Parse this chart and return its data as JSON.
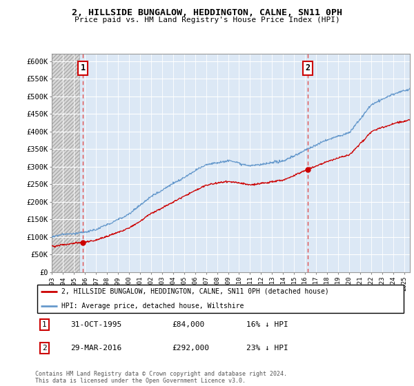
{
  "title": "2, HILLSIDE BUNGALOW, HEDDINGTON, CALNE, SN11 0PH",
  "subtitle": "Price paid vs. HM Land Registry's House Price Index (HPI)",
  "ylabel_ticks": [
    "£0",
    "£50K",
    "£100K",
    "£150K",
    "£200K",
    "£250K",
    "£300K",
    "£350K",
    "£400K",
    "£450K",
    "£500K",
    "£550K",
    "£600K"
  ],
  "ytick_values": [
    0,
    50000,
    100000,
    150000,
    200000,
    250000,
    300000,
    350000,
    400000,
    450000,
    500000,
    550000,
    600000
  ],
  "ylim": [
    0,
    620000
  ],
  "sale1_date": 1995.83,
  "sale1_price": 84000,
  "sale1_label": "1",
  "sale2_date": 2016.24,
  "sale2_price": 292000,
  "sale2_label": "2",
  "legend_line1": "2, HILLSIDE BUNGALOW, HEDDINGTON, CALNE, SN11 0PH (detached house)",
  "legend_line2": "HPI: Average price, detached house, Wiltshire",
  "footer": "Contains HM Land Registry data © Crown copyright and database right 2024.\nThis data is licensed under the Open Government Licence v3.0.",
  "bg_color": "#dce8f5",
  "hatch_bg_color": "#e8e8e8",
  "grid_color": "#ffffff",
  "red_line_color": "#cc0000",
  "blue_line_color": "#6699cc",
  "sale_dot_color": "#cc0000",
  "dashed_line_color": "#e05050",
  "xmin": 1993,
  "xmax": 2025.5
}
